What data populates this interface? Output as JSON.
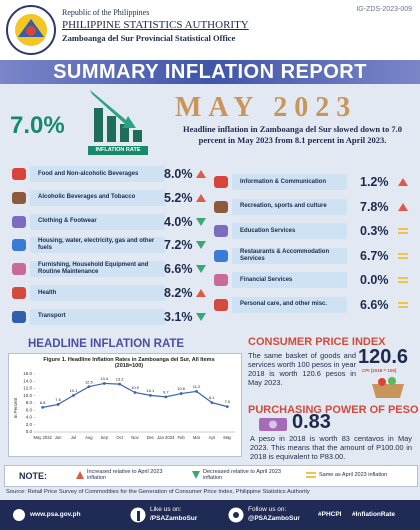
{
  "header": {
    "republic": "Republic of the Philippines",
    "agency": "PHILIPPINE STATISTICS AUTHORITY",
    "office": "Zamboanga del Sur Provincial Statistical Office",
    "code": "IG-ZDS-2023-009",
    "title": "SUMMARY INFLATION REPORT"
  },
  "headline": {
    "rate": "7.0%",
    "rate_label": "INFLATION RATE",
    "month": "MAY 2023",
    "text": "Headline inflation in Zamboanga del Sur slowed down to 7.0 percent in May 2023 from 8.1 percent in April 2023."
  },
  "commodities_left": [
    {
      "label": "Food and Non-alcoholic Beverages",
      "value": "8.0%",
      "trend": "up"
    },
    {
      "label": "Alcoholic Beverages and Tobacco",
      "value": "5.2%",
      "trend": "up"
    },
    {
      "label": "Clothing & Footwear",
      "value": "4.0%",
      "trend": "down"
    },
    {
      "label": "Housing, water, electricity, gas and other fuels",
      "value": "7.2%",
      "trend": "down"
    },
    {
      "label": "Furnishing, Household Equipment and Routine Maintenance",
      "value": "6.6%",
      "trend": "down"
    },
    {
      "label": "Health",
      "value": "8.2%",
      "trend": "up"
    },
    {
      "label": "Transport",
      "value": "3.1%",
      "trend": "down"
    }
  ],
  "commodities_right": [
    {
      "label": "Information & Communication",
      "value": "1.2%",
      "trend": "up"
    },
    {
      "label": "Recreation, sports and culture",
      "value": "7.8%",
      "trend": "up"
    },
    {
      "label": "Education Services",
      "value": "0.3%",
      "trend": "same"
    },
    {
      "label": "Restaurants & Accommodation Services",
      "value": "6.7%",
      "trend": "same"
    },
    {
      "label": "Financial Services",
      "value": "0.0%",
      "trend": "same"
    },
    {
      "label": "Personal care, and other misc.",
      "value": "6.6%",
      "trend": "same"
    }
  ],
  "chart_section_title": "HEADLINE INFLATION RATE",
  "chart_data": {
    "type": "line",
    "title": "Figure 1. Headline Inflation Rates in Zamboanga del Sur, All Items (2018=100)",
    "y_label": "In Percent",
    "categories": [
      "May 2022",
      "Jun",
      "Jul",
      "Aug",
      "Sep",
      "Oct",
      "Nov",
      "Dec",
      "Jan 2023",
      "Feb",
      "Mar",
      "Apr",
      "May"
    ],
    "values": [
      6.8,
      7.6,
      10.1,
      12.5,
      13.4,
      13.2,
      10.9,
      10.1,
      9.7,
      10.6,
      11.2,
      8.1,
      7.0
    ],
    "value_labels": [
      "6.8",
      "7.6",
      "10.1",
      "12.5",
      "13.4",
      "13.2",
      "10.9",
      "10.1",
      "9.7",
      "10.6",
      "11.2",
      "8.1",
      "7.0"
    ],
    "color": "#3a66b0",
    "ylim": [
      0,
      16
    ],
    "yticks": [
      {
        "value": 0,
        "label": "0.0"
      },
      {
        "value": 2,
        "label": "2.0"
      },
      {
        "value": 4,
        "label": "4.0"
      },
      {
        "value": 6,
        "label": "6.0"
      },
      {
        "value": 8,
        "label": "8.0"
      },
      {
        "value": 10,
        "label": "10.0"
      },
      {
        "value": 12,
        "label": "12.0"
      },
      {
        "value": 14,
        "label": "14.0"
      },
      {
        "value": 16,
        "label": "16.0"
      }
    ],
    "grid": false
  },
  "cpi": {
    "title": "CONSUMER PRICE INDEX",
    "text": "The same basket of goods and services worth 100 pesos in year 2018 is worth 120.6 pesos in May 2023.",
    "value": "120.6",
    "label": "CPI (2018 = 100)"
  },
  "ppp": {
    "title": "PURCHASING POWER OF PESO",
    "value": "0.83",
    "text": "A peso in 2018 is worth 83 centavos in May 2023. This means that the amount of P100.00 in 2018 is equivalent to P83.00."
  },
  "note": {
    "label": "NOTE:",
    "up": "Increased relative to April 2023 inflation",
    "down": "Decreased relative to April 2023 inflation",
    "same": "Same as April 2023 inflation"
  },
  "source": "Source: Retail Price Survey of Commodities for the Generation of Consumer Price Index, Philippine Statistics Authority",
  "footer": {
    "website": "www.psa.gov.ph",
    "like": "Like us on:",
    "facebook": "/PSAZamboSur",
    "follow": "Follow us on:",
    "twitter": "@PSAZamboSur",
    "tag1": "#PHCPI",
    "tag2": "#InflationRate"
  }
}
